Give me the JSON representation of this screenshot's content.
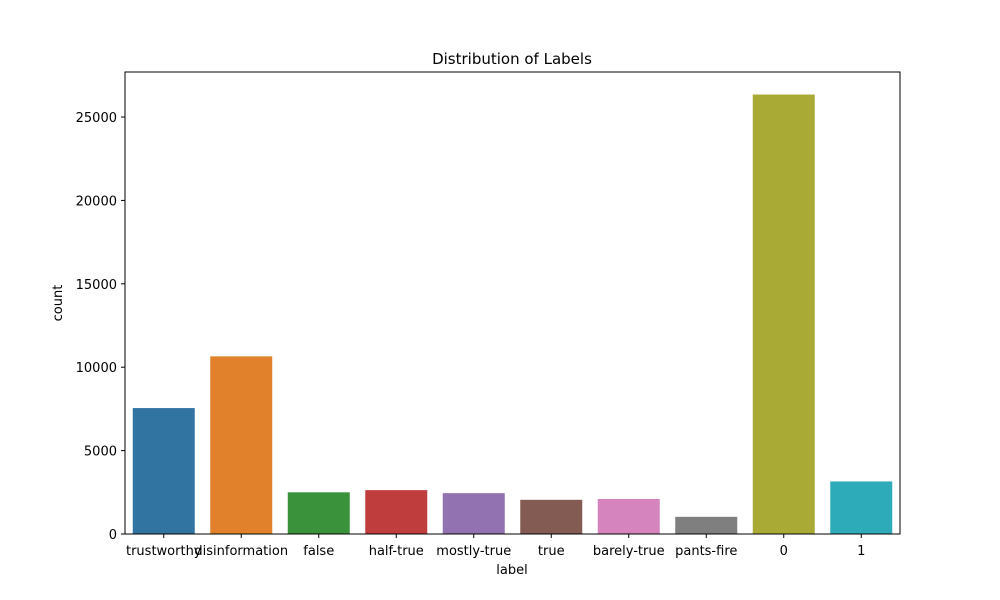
{
  "chart_data": {
    "type": "bar",
    "title": "Distribution of Labels",
    "xlabel": "label",
    "ylabel": "count",
    "categories": [
      "trustworthy",
      "disinformation",
      "false",
      "half-true",
      "mostly-true",
      "true",
      "barely-true",
      "pants-fire",
      "0",
      "1"
    ],
    "values": [
      7550,
      10650,
      2500,
      2630,
      2450,
      2050,
      2100,
      1030,
      26350,
      3150
    ],
    "colors": [
      "#3274a1",
      "#e1812c",
      "#3a923a",
      "#c03d3e",
      "#9372b2",
      "#845b53",
      "#d684bd",
      "#7f7f7f",
      "#a9aa35",
      "#2eabb8"
    ],
    "ylim": [
      0,
      27700
    ],
    "yticks": [
      0,
      5000,
      10000,
      15000,
      20000,
      25000
    ],
    "grid": false,
    "legend": "none"
  }
}
